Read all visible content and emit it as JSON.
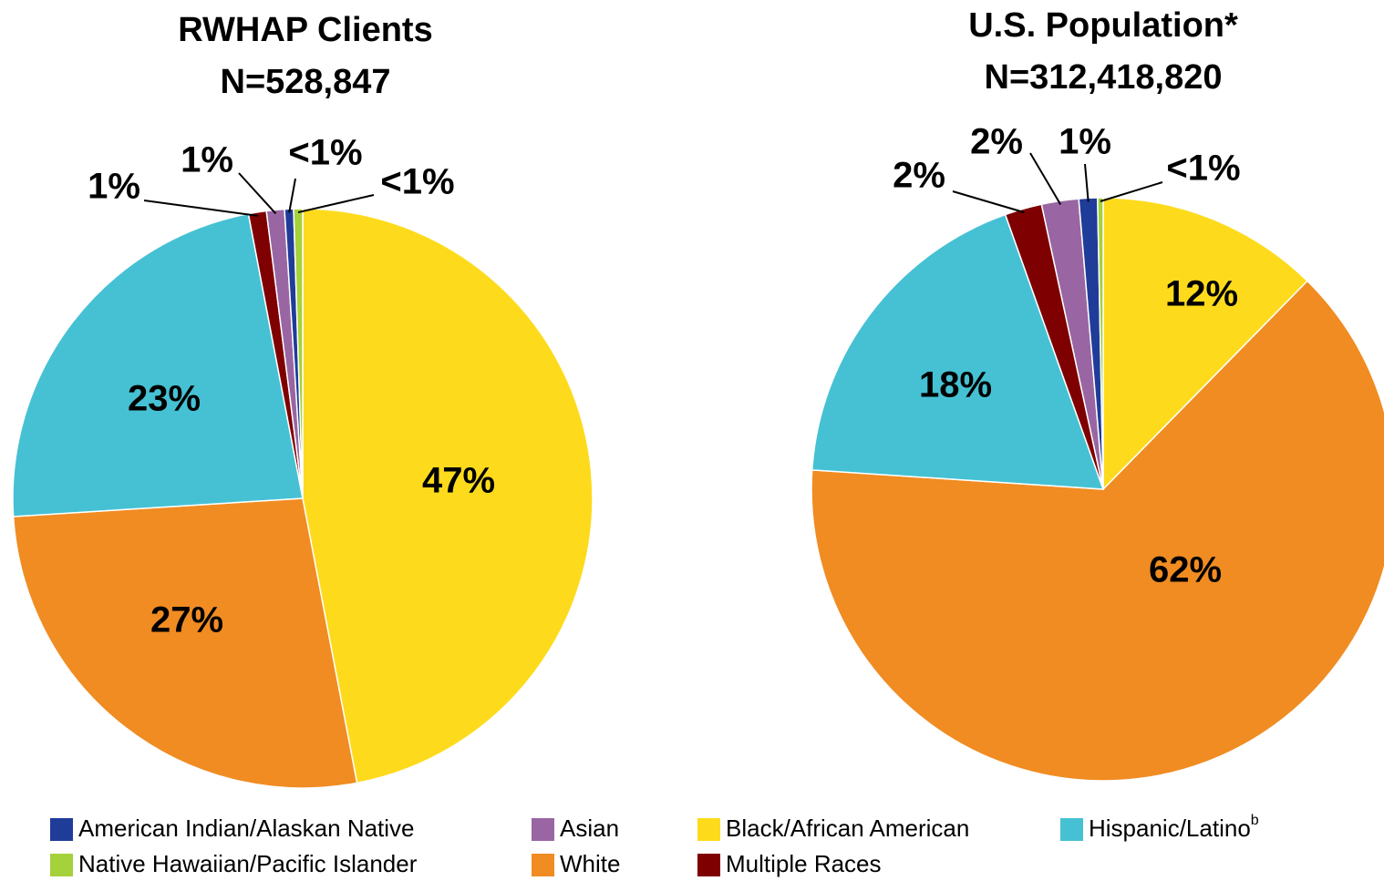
{
  "chart_data": [
    {
      "type": "pie",
      "title": "RWHAP Clients",
      "subtitle": "N=528,847",
      "categories": [
        "Black/African American",
        "White",
        "Hispanic/Latino",
        "Multiple Races",
        "Asian",
        "American Indian/Alaskan Native",
        "Native Hawaiian/Pacific Islander"
      ],
      "category_notes": [
        null,
        null,
        "b",
        null,
        null,
        null,
        null
      ],
      "colors": [
        "#fddb1c",
        "#f08c22",
        "#46c1d4",
        "#7f0000",
        "#9966a3",
        "#1f3c99",
        "#a5d13a"
      ],
      "values": [
        47,
        27,
        23,
        1,
        1,
        0.5,
        0.5
      ],
      "value_labels": [
        "47%",
        "27%",
        "23%",
        "1%",
        "1%",
        "<1%",
        "<1%"
      ]
    },
    {
      "type": "pie",
      "title": "U.S. Population*",
      "subtitle": "N=312,418,820",
      "categories": [
        "Black/African American",
        "White",
        "Hispanic/Latino",
        "Multiple Races",
        "Asian",
        "American Indian/Alaskan Native",
        "Native Hawaiian/Pacific Islander"
      ],
      "colors": [
        "#fddb1c",
        "#f08c22",
        "#46c1d4",
        "#7f0000",
        "#9966a3",
        "#1f3c99",
        "#a5d13a"
      ],
      "values": [
        12,
        62,
        18,
        2,
        2,
        1,
        0.3
      ],
      "value_labels": [
        "12%",
        "62%",
        "18%",
        "2%",
        "2%",
        "1%",
        "<1%"
      ]
    }
  ]
}
